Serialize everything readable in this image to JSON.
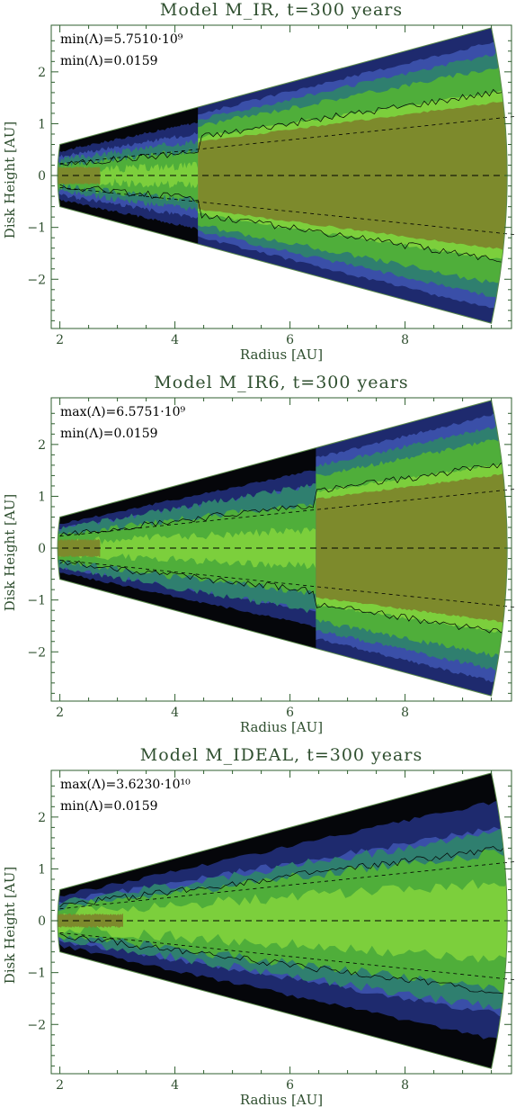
{
  "chart_data": [
    {
      "type": "heatmap",
      "title": "Model M_IR, t=300 years",
      "xlabel": "Radius [AU]",
      "ylabel": "Disk Height [AU]",
      "xlim": [
        1.85,
        9.85
      ],
      "ylim": [
        -2.95,
        2.9
      ],
      "xticks": [
        2,
        4,
        6,
        8
      ],
      "yticks": [
        -2,
        -1,
        0,
        1,
        2
      ],
      "annotations": [
        "min(Λ)=5.7510·10⁹",
        "min(Λ)=0.0159"
      ],
      "disk": {
        "r_inner": 2.0,
        "r_outer": 9.5,
        "opening_slope": 0.3,
        "transition_radius": 4.4,
        "core_slope_inner": 0.08,
        "core_slope_outer": 0.14
      }
    },
    {
      "type": "heatmap",
      "title": "Model M_IR6, t=300 years",
      "xlabel": "Radius [AU]",
      "ylabel": "Disk Height [AU]",
      "xlim": [
        1.85,
        9.85
      ],
      "ylim": [
        -2.95,
        2.9
      ],
      "xticks": [
        2,
        4,
        6,
        8
      ],
      "yticks": [
        -2,
        -1,
        0,
        1,
        2
      ],
      "annotations": [
        "max(Λ)=6.5751·10⁹",
        "min(Λ)=0.0159"
      ],
      "disk": {
        "r_inner": 2.0,
        "r_outer": 9.5,
        "opening_slope": 0.3,
        "transition_radius": 6.45,
        "core_slope_inner": 0.1,
        "core_slope_outer": 0.14
      }
    },
    {
      "type": "heatmap",
      "title": "Model M_IDEAL, t=300 years",
      "xlabel": "Radius [AU]",
      "ylabel": "Disk Height [AU]",
      "xlim": [
        1.85,
        9.85
      ],
      "ylim": [
        -2.95,
        2.9
      ],
      "xticks": [
        2,
        4,
        6,
        8
      ],
      "yticks": [
        -2,
        -1,
        0,
        1,
        2
      ],
      "annotations": [
        "max(Λ)=3.6230·10¹⁰",
        "min(Λ)=0.0159"
      ],
      "disk": {
        "r_inner": 2.0,
        "r_outer": 9.5,
        "opening_slope": 0.3,
        "transition_radius": null,
        "core_slope_inner": 0.11,
        "core_slope_outer": 0.11
      }
    }
  ],
  "colors": {
    "black": "#05060a",
    "navy": "#1e2a6e",
    "blue": "#3a4fa8",
    "teal": "#2f7f6f",
    "green": "#4fae3a",
    "lime": "#7ccf3c",
    "olive": "#7d8a2c",
    "axis": "#2f5f2f"
  }
}
